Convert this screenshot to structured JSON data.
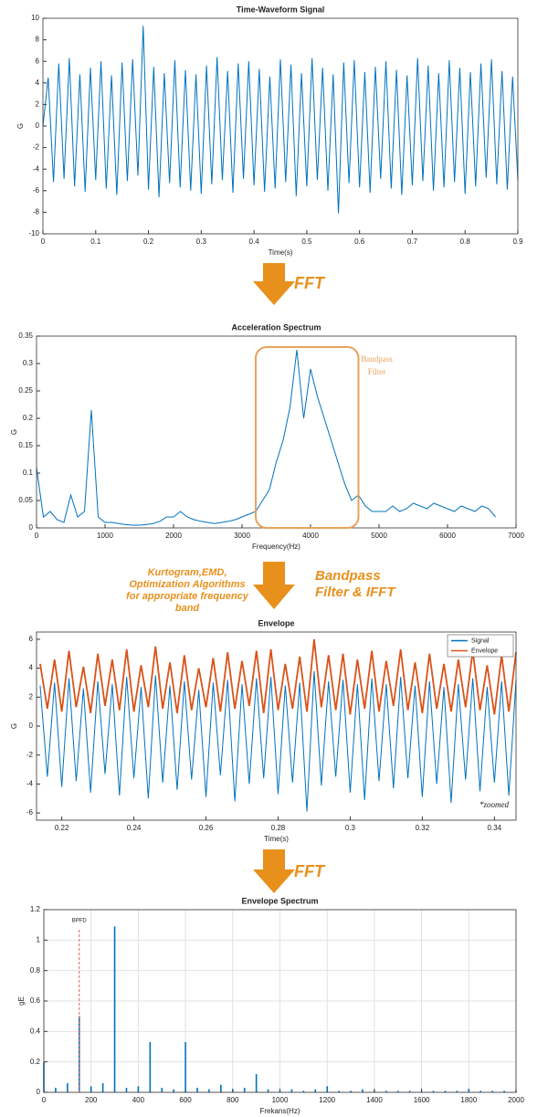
{
  "chart_data": [
    {
      "type": "line",
      "title": "Time-Waveform Signal",
      "xlabel": "Time(s)",
      "ylabel": "G",
      "x": [
        0,
        0.01,
        0.02,
        0.03,
        0.04,
        0.05,
        0.06,
        0.07,
        0.08,
        0.09,
        0.1,
        0.11,
        0.12,
        0.13,
        0.14,
        0.15,
        0.16,
        0.17,
        0.18,
        0.19,
        0.2,
        0.21,
        0.22,
        0.23,
        0.24,
        0.25,
        0.26,
        0.27,
        0.28,
        0.29,
        0.3,
        0.31,
        0.32,
        0.33,
        0.34,
        0.35,
        0.36,
        0.37,
        0.38,
        0.39,
        0.4,
        0.41,
        0.42,
        0.43,
        0.44,
        0.45,
        0.46,
        0.47,
        0.48,
        0.49,
        0.5,
        0.51,
        0.52,
        0.53,
        0.54,
        0.55,
        0.56,
        0.57,
        0.58,
        0.59,
        0.6,
        0.61,
        0.62,
        0.63,
        0.64,
        0.65,
        0.66,
        0.67,
        0.68,
        0.69,
        0.7,
        0.71,
        0.72,
        0.73,
        0.74,
        0.75,
        0.76,
        0.77,
        0.78,
        0.79,
        0.8,
        0.81,
        0.82,
        0.83,
        0.84,
        0.85,
        0.86,
        0.87,
        0.88,
        0.89,
        0.9
      ],
      "series": [
        {
          "color": "#0072bd",
          "values": [
            0,
            4.5,
            -5.2,
            5.8,
            -4.9,
            6.3,
            -5.6,
            4.8,
            -6.1,
            5.4,
            -5.0,
            6.0,
            -5.8,
            4.7,
            -6.4,
            5.9,
            -5.1,
            6.2,
            -4.6,
            9.3,
            -5.9,
            5.5,
            -6.6,
            4.9,
            -5.3,
            6.1,
            -5.7,
            5.2,
            -6.0,
            4.8,
            -6.3,
            5.6,
            -5.4,
            6.4,
            -5.0,
            5.1,
            -6.2,
            5.8,
            -4.9,
            6.0,
            -5.5,
            5.3,
            -6.1,
            4.6,
            -5.8,
            6.2,
            -5.2,
            5.7,
            -6.5,
            4.9,
            -5.6,
            6.3,
            -5.0,
            5.4,
            -6.0,
            4.8,
            -8.1,
            5.9,
            -5.3,
            6.1,
            -5.7,
            5.0,
            -6.2,
            5.5,
            -4.9,
            6.0,
            -5.8,
            5.2,
            -6.4,
            4.7,
            -5.5,
            6.3,
            -5.1,
            5.6,
            -6.0,
            4.9,
            -5.7,
            6.1,
            -5.2,
            5.4,
            -6.3,
            5.0,
            -5.6,
            5.8,
            -4.8,
            6.2,
            -5.4,
            5.1,
            -5.9,
            4.6,
            -5.0
          ]
        }
      ],
      "xlim": [
        0,
        0.9
      ],
      "xticks": [
        0,
        0.1,
        0.2,
        0.3,
        0.4,
        0.5,
        0.6,
        0.7,
        0.8,
        0.9
      ],
      "ylim": [
        -10,
        10
      ],
      "yticks": [
        -10,
        -8,
        -6,
        -4,
        -2,
        0,
        2,
        4,
        6,
        8,
        10
      ],
      "grid": false
    },
    {
      "type": "line",
      "title": "Acceleration Spectrum",
      "xlabel": "Frequency(Hz)",
      "ylabel": "G",
      "x": [
        0,
        100,
        200,
        300,
        400,
        500,
        600,
        700,
        800,
        900,
        1000,
        1100,
        1200,
        1300,
        1400,
        1500,
        1600,
        1700,
        1800,
        1900,
        2000,
        2100,
        2200,
        2300,
        2400,
        2500,
        2600,
        2700,
        2800,
        2900,
        3000,
        3100,
        3200,
        3300,
        3400,
        3500,
        3600,
        3700,
        3800,
        3900,
        4000,
        4100,
        4200,
        4300,
        4400,
        4500,
        4600,
        4700,
        4800,
        4900,
        5000,
        5100,
        5200,
        5300,
        5400,
        5500,
        5600,
        5700,
        5800,
        5900,
        6000,
        6100,
        6200,
        6300,
        6400,
        6500,
        6600,
        6700
      ],
      "series": [
        {
          "color": "#0072bd",
          "values": [
            0.11,
            0.02,
            0.03,
            0.015,
            0.01,
            0.06,
            0.02,
            0.03,
            0.215,
            0.02,
            0.01,
            0.01,
            0.008,
            0.006,
            0.005,
            0.005,
            0.006,
            0.008,
            0.012,
            0.02,
            0.02,
            0.03,
            0.02,
            0.015,
            0.012,
            0.01,
            0.008,
            0.01,
            0.012,
            0.015,
            0.02,
            0.025,
            0.03,
            0.05,
            0.07,
            0.12,
            0.16,
            0.22,
            0.325,
            0.2,
            0.29,
            0.24,
            0.2,
            0.16,
            0.12,
            0.08,
            0.05,
            0.06,
            0.04,
            0.03,
            0.03,
            0.03,
            0.04,
            0.03,
            0.035,
            0.045,
            0.04,
            0.035,
            0.045,
            0.04,
            0.035,
            0.03,
            0.04,
            0.035,
            0.03,
            0.04,
            0.035,
            0.02
          ]
        }
      ],
      "xlim": [
        0,
        7000
      ],
      "xticks": [
        0,
        1000,
        2000,
        3000,
        4000,
        5000,
        6000,
        7000
      ],
      "ylim": [
        0,
        0.35
      ],
      "yticks": [
        0,
        0.05,
        0.1,
        0.15,
        0.2,
        0.25,
        0.3,
        0.35
      ],
      "grid": false,
      "box": {
        "label": [
          "Bandpass",
          "Filter"
        ],
        "color": "#e8a25a",
        "x": [
          3200,
          4700
        ],
        "y": [
          0,
          0.33
        ]
      }
    },
    {
      "type": "line",
      "title": "Envelope",
      "xlabel": "Time(s)",
      "ylabel": "G",
      "x": [
        0.214,
        0.216,
        0.218,
        0.22,
        0.222,
        0.224,
        0.226,
        0.228,
        0.23,
        0.232,
        0.234,
        0.236,
        0.238,
        0.24,
        0.242,
        0.244,
        0.246,
        0.248,
        0.25,
        0.252,
        0.254,
        0.256,
        0.258,
        0.26,
        0.262,
        0.264,
        0.266,
        0.268,
        0.27,
        0.272,
        0.274,
        0.276,
        0.278,
        0.28,
        0.282,
        0.284,
        0.286,
        0.288,
        0.29,
        0.292,
        0.294,
        0.296,
        0.298,
        0.3,
        0.302,
        0.304,
        0.306,
        0.308,
        0.31,
        0.312,
        0.314,
        0.316,
        0.318,
        0.32,
        0.322,
        0.324,
        0.326,
        0.328,
        0.33,
        0.332,
        0.334,
        0.336,
        0.338,
        0.34,
        0.342,
        0.344,
        0.346
      ],
      "series": [
        {
          "name": "Signal",
          "color": "#0072bd",
          "values": [
            2.8,
            -3.5,
            3.0,
            -4.2,
            3.3,
            -3.8,
            2.6,
            -4.6,
            3.1,
            -3.3,
            2.9,
            -4.8,
            3.4,
            -3.6,
            2.7,
            -5.0,
            3.5,
            -3.9,
            2.8,
            -4.4,
            3.1,
            -3.7,
            2.5,
            -4.9,
            3.0,
            -3.4,
            3.2,
            -5.2,
            2.9,
            -4.0,
            3.3,
            -3.6,
            3.4,
            -4.7,
            2.8,
            -3.9,
            3.0,
            -5.9,
            3.8,
            -4.1,
            3.1,
            -3.5,
            3.2,
            -4.6,
            2.9,
            -5.1,
            3.3,
            -3.8,
            2.9,
            -4.3,
            3.4,
            -3.6,
            2.8,
            -4.9,
            3.1,
            -4.0,
            2.7,
            -5.3,
            2.9,
            -3.7,
            3.3,
            -4.5,
            2.7,
            -3.9,
            3.1,
            -4.8,
            3.2
          ]
        },
        {
          "name": "Envelope",
          "color": "#d95319",
          "values": [
            4.3,
            1.2,
            4.6,
            1.0,
            5.2,
            1.3,
            4.1,
            0.9,
            5.0,
            1.4,
            4.6,
            1.1,
            5.3,
            1.0,
            4.2,
            1.3,
            5.5,
            1.2,
            4.4,
            0.9,
            4.9,
            1.1,
            4.0,
            1.3,
            4.7,
            1.0,
            5.1,
            1.2,
            4.5,
            1.4,
            5.2,
            0.9,
            5.3,
            1.1,
            4.3,
            1.2,
            4.8,
            1.0,
            6.0,
            1.3,
            4.9,
            1.1,
            5.0,
            0.8,
            4.6,
            1.2,
            5.2,
            1.0,
            4.5,
            1.4,
            5.3,
            1.1,
            4.4,
            0.9,
            5.0,
            1.2,
            4.3,
            1.0,
            4.6,
            1.3,
            5.2,
            1.1,
            4.2,
            0.8,
            4.9,
            1.0,
            5.1
          ]
        }
      ],
      "xlim": [
        0.213,
        0.346
      ],
      "xticks": [
        0.22,
        0.24,
        0.26,
        0.28,
        0.3,
        0.32,
        0.34
      ],
      "ylim": [
        -6.5,
        6.5
      ],
      "yticks": [
        -6,
        -4,
        -2,
        0,
        2,
        4,
        6
      ],
      "grid": false,
      "legend": "top-right",
      "note": "*zoomed"
    },
    {
      "type": "stem",
      "title": "Envelope Spectrum",
      "xlabel": "Frekans(Hz)",
      "ylabel": "gE",
      "x": [
        0,
        50,
        100,
        150,
        200,
        250,
        300,
        350,
        400,
        450,
        500,
        550,
        600,
        650,
        700,
        750,
        800,
        850,
        900,
        950,
        1000,
        1050,
        1100,
        1150,
        1200,
        1250,
        1300,
        1350,
        1400,
        1450,
        1500,
        1550,
        1600,
        1650,
        1700,
        1750,
        1800,
        1850,
        1900,
        1950,
        2000
      ],
      "series": [
        {
          "color": "#0072bd",
          "values": [
            0.2,
            0.03,
            0.06,
            0.5,
            0.04,
            0.06,
            1.09,
            0.03,
            0.04,
            0.33,
            0.03,
            0.02,
            0.33,
            0.03,
            0.02,
            0.05,
            0.02,
            0.03,
            0.12,
            0.02,
            0.01,
            0.02,
            0.01,
            0.02,
            0.04,
            0.01,
            0.01,
            0.02,
            0.01,
            0.01,
            0.01,
            0.01,
            0.01,
            0.01,
            0.01,
            0.01,
            0.02,
            0.01,
            0.01,
            0.01,
            0.01
          ]
        }
      ],
      "xlim": [
        0,
        2000
      ],
      "xticks": [
        0,
        200,
        400,
        600,
        800,
        1000,
        1200,
        1400,
        1600,
        1800,
        2000
      ],
      "ylim": [
        0,
        1.2
      ],
      "yticks": [
        0,
        0.2,
        0.4,
        0.6,
        0.8,
        1,
        1.2
      ],
      "grid": true,
      "marker": {
        "label": "BPFD",
        "color": "#e0605a",
        "x": 150,
        "y": [
          0,
          1.08
        ]
      }
    }
  ],
  "arrows": [
    {
      "label": [
        "FFT"
      ]
    },
    {
      "left": [
        "Kurtogram,EMD,",
        "Optimization Algorithms",
        "for appropriate frequency",
        "band"
      ],
      "label": [
        "Bandpass",
        "Filter & IFFT"
      ]
    },
    {
      "label": [
        "FFT"
      ]
    }
  ]
}
